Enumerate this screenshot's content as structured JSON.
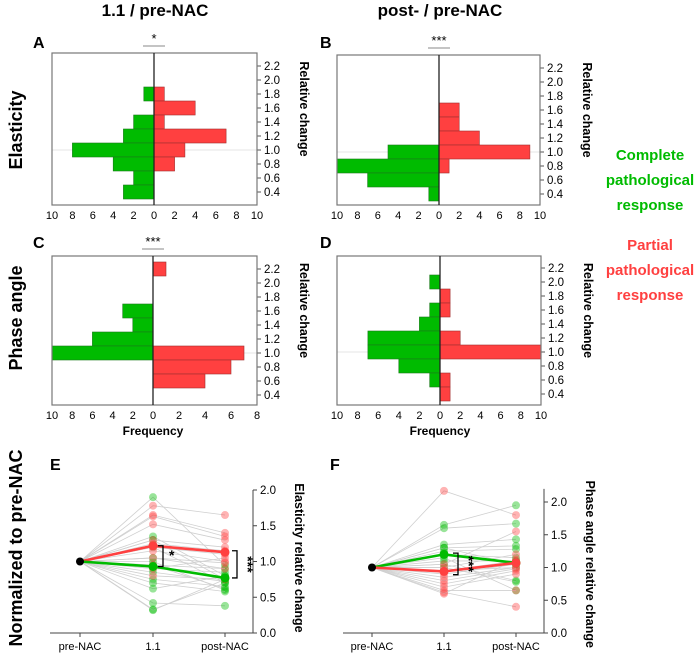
{
  "column_titles": [
    "1.1 / pre-NAC",
    "post- / pre-NAC"
  ],
  "row_labels": [
    "Elasticity",
    "Phase angle",
    "Normalized to pre-NAC"
  ],
  "legend": {
    "complete": {
      "lines": [
        "Complete",
        "pathological",
        "response"
      ],
      "color": "#00bb00"
    },
    "partial": {
      "lines": [
        "Partial",
        "pathological",
        "response"
      ],
      "color": "#ff4040"
    }
  },
  "colors": {
    "green": "#00bb00",
    "red": "#ff4040"
  },
  "chart_data": [
    {
      "panel": "A",
      "type": "bar",
      "orientation": "horizontal-back-to-back",
      "significance": "*",
      "bins": [
        2.2,
        2.0,
        1.8,
        1.6,
        1.4,
        1.2,
        1.0,
        0.8,
        0.6,
        0.4
      ],
      "series": [
        {
          "name": "Complete pathological response",
          "values": [
            0,
            0,
            1,
            0,
            2,
            3,
            8,
            4,
            2,
            3
          ]
        },
        {
          "name": "Partial pathological response",
          "values": [
            0,
            0,
            1,
            4,
            1,
            7,
            3,
            2,
            0,
            0
          ]
        }
      ],
      "ylabel": "Relative change",
      "xlim_left": 10,
      "xlim_right": 10,
      "xticks_left": [
        "10",
        "8",
        "6",
        "4",
        "2"
      ],
      "xticks_right": [
        "0",
        "2",
        "4",
        "6",
        "8",
        "10"
      ],
      "xlabel": ""
    },
    {
      "panel": "B",
      "type": "bar",
      "orientation": "horizontal-back-to-back",
      "significance": "***",
      "bins": [
        2.2,
        2.0,
        1.8,
        1.6,
        1.4,
        1.2,
        1.0,
        0.8,
        0.6,
        0.4
      ],
      "series": [
        {
          "name": "Complete pathological response",
          "values": [
            0,
            0,
            0,
            0,
            0,
            0,
            5,
            10,
            7,
            1
          ]
        },
        {
          "name": "Partial pathological response",
          "values": [
            0,
            0,
            0,
            2,
            2,
            4,
            9,
            1,
            0,
            0
          ]
        }
      ],
      "ylabel": "Relative change",
      "xlim_left": 10,
      "xlim_right": 10,
      "xticks_left": [
        "10",
        "8",
        "6",
        "4",
        "2"
      ],
      "xticks_right": [
        "0",
        "2",
        "4",
        "6",
        "8",
        "10"
      ],
      "xlabel": ""
    },
    {
      "panel": "C",
      "type": "bar",
      "orientation": "horizontal-back-to-back",
      "significance": "***",
      "bins": [
        2.2,
        2.0,
        1.8,
        1.6,
        1.4,
        1.2,
        1.0,
        0.8,
        0.6,
        0.4
      ],
      "series": [
        {
          "name": "Complete pathological response",
          "values": [
            0,
            0,
            0,
            3,
            2,
            6,
            10,
            0,
            0,
            0
          ]
        },
        {
          "name": "Partial pathological response",
          "values": [
            1,
            0,
            0,
            0,
            0,
            0,
            7,
            6,
            4,
            0
          ]
        }
      ],
      "ylabel": "Relative change",
      "xlim_left": 10,
      "xlim_right": 8,
      "xticks_left": [
        "10",
        "8",
        "6",
        "4",
        "2"
      ],
      "xticks_right": [
        "0",
        "2",
        "4",
        "6",
        "8"
      ],
      "xlabel": "Frequency"
    },
    {
      "panel": "D",
      "type": "bar",
      "orientation": "horizontal-back-to-back",
      "significance": "",
      "bins": [
        2.2,
        2.0,
        1.8,
        1.6,
        1.4,
        1.2,
        1.0,
        0.8,
        0.6,
        0.4
      ],
      "series": [
        {
          "name": "Complete pathological response",
          "values": [
            0,
            1,
            0,
            1,
            2,
            7,
            7,
            4,
            1,
            0
          ]
        },
        {
          "name": "Partial pathological response",
          "values": [
            0,
            0,
            1,
            1,
            0,
            2,
            10,
            0,
            1,
            1
          ]
        }
      ],
      "ylabel": "Relative change",
      "xlim_left": 10,
      "xlim_right": 10,
      "xticks_left": [
        "10",
        "8",
        "6",
        "4",
        "2"
      ],
      "xticks_right": [
        "0",
        "2",
        "4",
        "6",
        "8",
        "10"
      ],
      "xlabel": "Frequency"
    },
    {
      "panel": "E",
      "type": "line",
      "x": [
        "pre-NAC",
        "1.1",
        "post-NAC"
      ],
      "ylabel": "Elasticity relative change",
      "ylim": [
        0,
        2.0
      ],
      "yticks": [
        "0.0",
        "0.5",
        "1.0",
        "1.5",
        "2.0"
      ],
      "series": [
        {
          "name": "Partial pathological response mean",
          "values": [
            1.0,
            1.22,
            1.13
          ]
        },
        {
          "name": "Complete pathological response mean",
          "values": [
            1.0,
            0.93,
            0.77
          ]
        }
      ],
      "individual_green": [
        [
          1.9,
          0.95
        ],
        [
          1.35,
          0.8
        ],
        [
          1.3,
          0.75
        ],
        [
          1.2,
          0.7
        ],
        [
          1.05,
          0.9
        ],
        [
          1.0,
          0.6
        ],
        [
          0.95,
          0.62
        ],
        [
          0.9,
          0.85
        ],
        [
          0.85,
          0.72
        ],
        [
          0.75,
          0.65
        ],
        [
          0.7,
          0.58
        ],
        [
          0.62,
          0.8
        ],
        [
          0.42,
          0.38
        ],
        [
          0.33,
          0.7
        ],
        [
          0.32,
          0.75
        ]
      ],
      "individual_red": [
        [
          1.78,
          1.65
        ],
        [
          1.65,
          1.4
        ],
        [
          1.63,
          1.35
        ],
        [
          1.52,
          1.3
        ],
        [
          1.3,
          1.2
        ],
        [
          1.25,
          1.15
        ],
        [
          1.2,
          1.1
        ],
        [
          1.15,
          1.0
        ],
        [
          1.05,
          0.98
        ],
        [
          0.95,
          0.9
        ],
        [
          0.9,
          1.05
        ],
        [
          0.8,
          0.75
        ]
      ],
      "annotations": [
        "*",
        "***"
      ]
    },
    {
      "panel": "F",
      "type": "line",
      "x": [
        "pre-NAC",
        "1.1",
        "post-NAC"
      ],
      "ylabel": "Phase angle relative change",
      "ylim": [
        0,
        2.2
      ],
      "yticks": [
        "0.0",
        "0.5",
        "1.0",
        "1.5",
        "2.0"
      ],
      "series": [
        {
          "name": "Complete pathological response mean",
          "values": [
            1.0,
            1.2,
            1.07
          ]
        },
        {
          "name": "Partial pathological response mean",
          "values": [
            1.0,
            0.94,
            1.07
          ]
        }
      ],
      "individual_green": [
        [
          1.65,
          1.95
        ],
        [
          1.6,
          1.67
        ],
        [
          1.35,
          1.43
        ],
        [
          1.3,
          1.33
        ],
        [
          1.25,
          1.28
        ],
        [
          1.2,
          1.15
        ],
        [
          1.1,
          1.1
        ],
        [
          1.05,
          0.8
        ],
        [
          1.0,
          0.78
        ],
        [
          0.95,
          1.0
        ],
        [
          1.3,
          1.05
        ],
        [
          1.15,
          0.65
        ]
      ],
      "individual_red": [
        [
          2.17,
          1.8
        ],
        [
          1.05,
          1.55
        ],
        [
          1.0,
          1.2
        ],
        [
          0.95,
          1.1
        ],
        [
          0.9,
          1.05
        ],
        [
          0.85,
          1.0
        ],
        [
          0.75,
          0.95
        ],
        [
          0.7,
          0.9
        ],
        [
          0.65,
          0.65
        ],
        [
          0.62,
          0.4
        ],
        [
          0.6,
          1.12
        ],
        [
          0.8,
          0.98
        ]
      ],
      "annotations": [
        "***"
      ]
    }
  ]
}
